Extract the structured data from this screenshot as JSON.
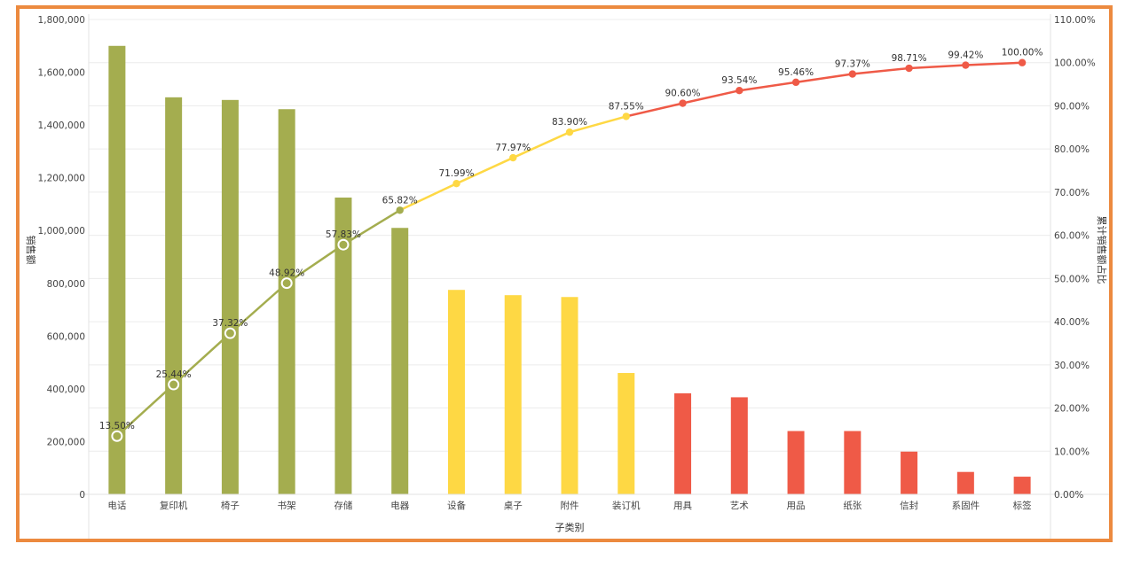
{
  "chart_data": {
    "type": "bar+line",
    "xlabel": "子类别",
    "ylabel_left": "销售额",
    "ylabel_right": "累计销售额占比",
    "ylim_left": [
      0,
      1800000
    ],
    "ylim_right": [
      0,
      110
    ],
    "left_ticks": [
      "0",
      "200,000",
      "400,000",
      "600,000",
      "800,000",
      "1,000,000",
      "1,200,000",
      "1,400,000",
      "1,600,000",
      "1,800,000"
    ],
    "right_ticks": [
      "0.00%",
      "10.00%",
      "20.00%",
      "30.00%",
      "40.00%",
      "50.00%",
      "60.00%",
      "70.00%",
      "80.00%",
      "90.00%",
      "100.00%",
      "110.00%"
    ],
    "categories": [
      "电话",
      "复印机",
      "椅子",
      "书架",
      "存储",
      "电器",
      "设备",
      "桌子",
      "附件",
      "装订机",
      "用具",
      "艺术",
      "用品",
      "纸张",
      "信封",
      "系固件",
      "标签"
    ],
    "series": [
      {
        "values": [
          1700000,
          1505000,
          1495000,
          1460000,
          1125000,
          1010000,
          775000,
          755000,
          748000,
          460000,
          383000,
          368000,
          240000,
          240000,
          162000,
          85000,
          67000
        ]
      },
      {
        "values": [
          13.5,
          25.44,
          37.32,
          48.92,
          57.83,
          65.82,
          71.99,
          77.97,
          83.9,
          87.55,
          90.6,
          93.54,
          95.46,
          97.37,
          98.71,
          99.42,
          100.0
        ],
        "labels": [
          "13.50%",
          "25.44%",
          "37.32%",
          "48.92%",
          "57.83%",
          "65.82%",
          "71.99%",
          "77.97%",
          "83.90%",
          "87.55%",
          "90.60%",
          "93.54%",
          "95.46%",
          "97.37%",
          "98.71%",
          "99.42%",
          "100.00%"
        ]
      }
    ],
    "groups": [
      "A",
      "A",
      "A",
      "A",
      "A",
      "A",
      "B",
      "B",
      "B",
      "B",
      "C",
      "C",
      "C",
      "C",
      "C",
      "C",
      "C"
    ],
    "colors": {
      "A": "#a4ad4f",
      "B": "#fed844",
      "C": "#ef5a47"
    },
    "grid": true
  }
}
